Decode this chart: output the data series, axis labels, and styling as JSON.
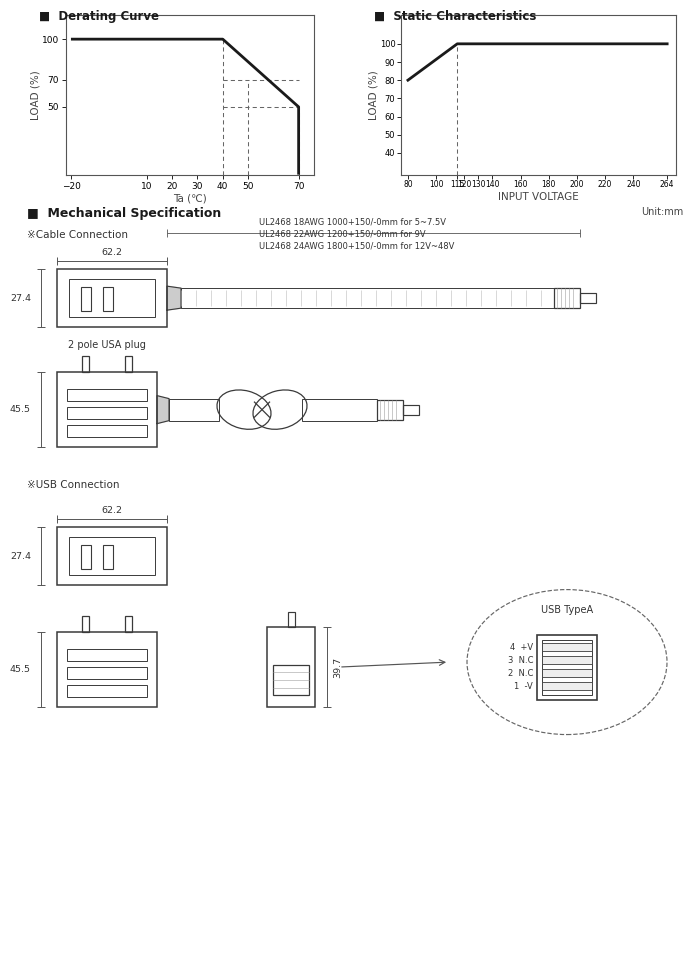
{
  "derating_curve": {
    "title": "Derating Curve",
    "x": [
      -20,
      40,
      70,
      70
    ],
    "y": [
      100,
      100,
      50,
      0
    ],
    "xlabel": "Ta (℃)",
    "ylabel": "LOAD (%)",
    "xlim": [
      -22,
      76
    ],
    "ylim": [
      0,
      118
    ],
    "xticks": [
      -20,
      10,
      20,
      30,
      40,
      50,
      70
    ],
    "yticks": [
      50,
      70,
      100
    ]
  },
  "static_characteristics": {
    "title": "Static Characteristics",
    "x": [
      80,
      115,
      264
    ],
    "y": [
      80,
      100,
      100
    ],
    "xlabel": "INPUT VOLTAGE",
    "ylabel": "LOAD (%)",
    "xlim": [
      75,
      270
    ],
    "ylim": [
      28,
      116
    ],
    "xticks": [
      80,
      100,
      115,
      120,
      130,
      140,
      160,
      180,
      200,
      220,
      240,
      264
    ],
    "yticks": [
      40,
      50,
      60,
      70,
      80,
      90,
      100
    ]
  },
  "mech": {
    "title": "Mechanical Specification",
    "unit": "Unit:mm",
    "cable_label": "※Cable Connection",
    "usb_label": "※USB Connection",
    "cable_notes": [
      "UL2468 18AWG 1000+150/-0mm for 5~7.5V",
      "UL2468 22AWG 1200+150/-0mm for 9V",
      "UL2468 24AWG 1800+150/-0mm for 12V~48V"
    ],
    "pole_label": "2 pole USA plug",
    "usb_type_label": "USB TypeA",
    "usb_pins": [
      "4  +V",
      "3  N.C",
      "2  N.C",
      "1  -V"
    ],
    "d62": "62.2",
    "d27": "27.4",
    "d45": "45.5",
    "d39": "39.7"
  },
  "colors": {
    "line": "#1a1a1a",
    "dash": "#666666",
    "axis": "#444444",
    "bg": "#ffffff",
    "diag": "#3a3a3a"
  }
}
